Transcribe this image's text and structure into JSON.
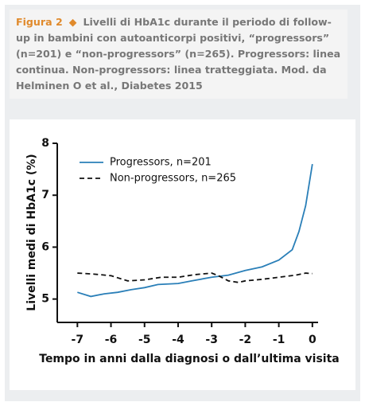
{
  "figure_label": "Figura 2",
  "caption": "Livelli di HbA1c durante il periodo di follow-up in bambini con autoanticorpi positivi, “progressors” (n=201) e “non-progressors” (n=265). Progressors: linea continua. Non-progressors: linea tratteggiata. Mod. da Helminen O et al., Diabetes 2015",
  "chart_data": {
    "type": "line",
    "x_label": "Tempo in anni dalla diagnosi o dall’ultima visita",
    "y_label": "Livelli medi di HbA1c (%)",
    "xlim": [
      -7.6,
      0.17
    ],
    "xticks": [
      -7,
      -6,
      -5,
      -4,
      -3,
      -2,
      -1,
      0
    ],
    "ylim": [
      4.55,
      8
    ],
    "yticks": [
      5,
      6,
      7,
      8
    ],
    "legend": "top-left",
    "series": [
      {
        "name": "Progressors, n=201",
        "color": "#2a7fb8",
        "dash": false,
        "x": [
          -7,
          -6.6,
          -6.2,
          -5.8,
          -5.4,
          -5,
          -4.6,
          -4,
          -3.6,
          -3,
          -2.5,
          -2,
          -1.5,
          -1,
          -0.6,
          -0.4,
          -0.2,
          0
        ],
        "values": [
          5.13,
          5.05,
          5.1,
          5.13,
          5.18,
          5.22,
          5.28,
          5.3,
          5.35,
          5.42,
          5.46,
          5.55,
          5.62,
          5.75,
          5.95,
          6.3,
          6.8,
          7.6
        ]
      },
      {
        "name": "Non-progressors, n=265",
        "color": "#111111",
        "dash": true,
        "x": [
          -7,
          -6.5,
          -6,
          -5.5,
          -5,
          -4.5,
          -4,
          -3.5,
          -3,
          -2.8,
          -2.5,
          -2.2,
          -2,
          -1.5,
          -1,
          -0.5,
          -0.2,
          0
        ],
        "values": [
          5.5,
          5.48,
          5.45,
          5.35,
          5.37,
          5.42,
          5.42,
          5.47,
          5.5,
          5.45,
          5.35,
          5.32,
          5.35,
          5.38,
          5.42,
          5.46,
          5.5,
          5.49
        ]
      }
    ]
  }
}
